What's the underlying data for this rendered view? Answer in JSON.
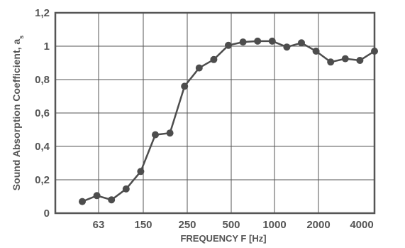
{
  "chart_data": {
    "type": "line",
    "xlabel": "FREQUENCY F [Hz]",
    "ylabel_main": "Sound Absorption Coefficient, a",
    "ylabel_sub": "s",
    "ylim": [
      0,
      1.2
    ],
    "yticks": [
      "0",
      "0,2",
      "0,4",
      "0,6",
      "0,8",
      "1",
      "1,2"
    ],
    "yticks_values": [
      0,
      0.2,
      0.4,
      0.6,
      0.8,
      1.0,
      1.2
    ],
    "xticks": [
      "63",
      "150",
      "250",
      "500",
      "1000",
      "2000",
      "4000"
    ],
    "grid": true,
    "series": [
      {
        "values": [
          0.07,
          0.105,
          0.08,
          0.145,
          0.25,
          0.47,
          0.48,
          0.76,
          0.87,
          0.92,
          1.005,
          1.025,
          1.03,
          1.03,
          0.995,
          1.02,
          0.97,
          0.905,
          0.925,
          0.915,
          0.97
        ]
      }
    ]
  }
}
